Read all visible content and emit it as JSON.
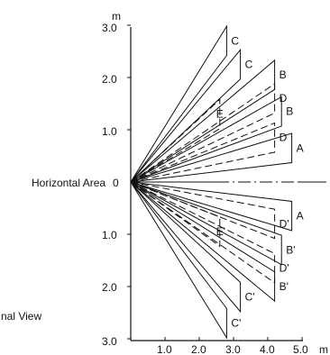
{
  "axis": {
    "y_unit": "m",
    "x_unit": "m",
    "y_ticks_upper": [
      "3.0",
      "2.0",
      "1.0"
    ],
    "y_ticks_lower": [
      "1.0",
      "2.0",
      "3.0"
    ],
    "x_ticks": [
      "1.0",
      "2.0",
      "3.0",
      "4.0",
      "5.0"
    ],
    "origin_label": "0",
    "horizontal_area_label": "Horizontal Area",
    "side_caption_fragment": "nal View"
  },
  "zones": [
    {
      "label": "C",
      "style": "solid",
      "side": "upper",
      "tip": [
        2.8,
        2.7
      ]
    },
    {
      "label": "C",
      "style": "solid",
      "side": "upper",
      "tip": [
        3.2,
        2.25
      ]
    },
    {
      "label": "B",
      "style": "solid",
      "side": "upper",
      "tip": [
        4.2,
        2.05
      ]
    },
    {
      "label": "D",
      "style": "dashed",
      "side": "upper",
      "tip": [
        4.2,
        1.6
      ]
    },
    {
      "label": "B",
      "style": "solid",
      "side": "upper",
      "tip": [
        4.4,
        1.35
      ]
    },
    {
      "label": "E",
      "style": "dashed",
      "side": "upper",
      "tip": [
        2.6,
        1.3
      ]
    },
    {
      "label": "D",
      "style": "dashed",
      "side": "upper",
      "tip": [
        4.2,
        0.85
      ]
    },
    {
      "label": "A",
      "style": "solid",
      "side": "upper",
      "tip": [
        4.7,
        0.65
      ]
    },
    {
      "label": "A",
      "style": "solid",
      "side": "lower",
      "tip": [
        4.7,
        -0.65
      ]
    },
    {
      "label": "E'",
      "style": "dashed",
      "side": "lower",
      "tip": [
        2.6,
        -0.95
      ]
    },
    {
      "label": "D'",
      "style": "dashed",
      "side": "lower",
      "tip": [
        4.2,
        -0.8
      ]
    },
    {
      "label": "B'",
      "style": "solid",
      "side": "lower",
      "tip": [
        4.4,
        -1.3
      ]
    },
    {
      "label": "D'",
      "style": "dashed",
      "side": "lower",
      "tip": [
        4.2,
        -1.65
      ]
    },
    {
      "label": "B'",
      "style": "solid",
      "side": "lower",
      "tip": [
        4.2,
        -2.0
      ]
    },
    {
      "label": "C'",
      "style": "solid",
      "side": "lower",
      "tip": [
        3.2,
        -2.2
      ]
    },
    {
      "label": "C'",
      "style": "solid",
      "side": "lower",
      "tip": [
        2.8,
        -2.7
      ]
    }
  ],
  "colors": {
    "line": "#111111",
    "background": "#ffffff"
  }
}
